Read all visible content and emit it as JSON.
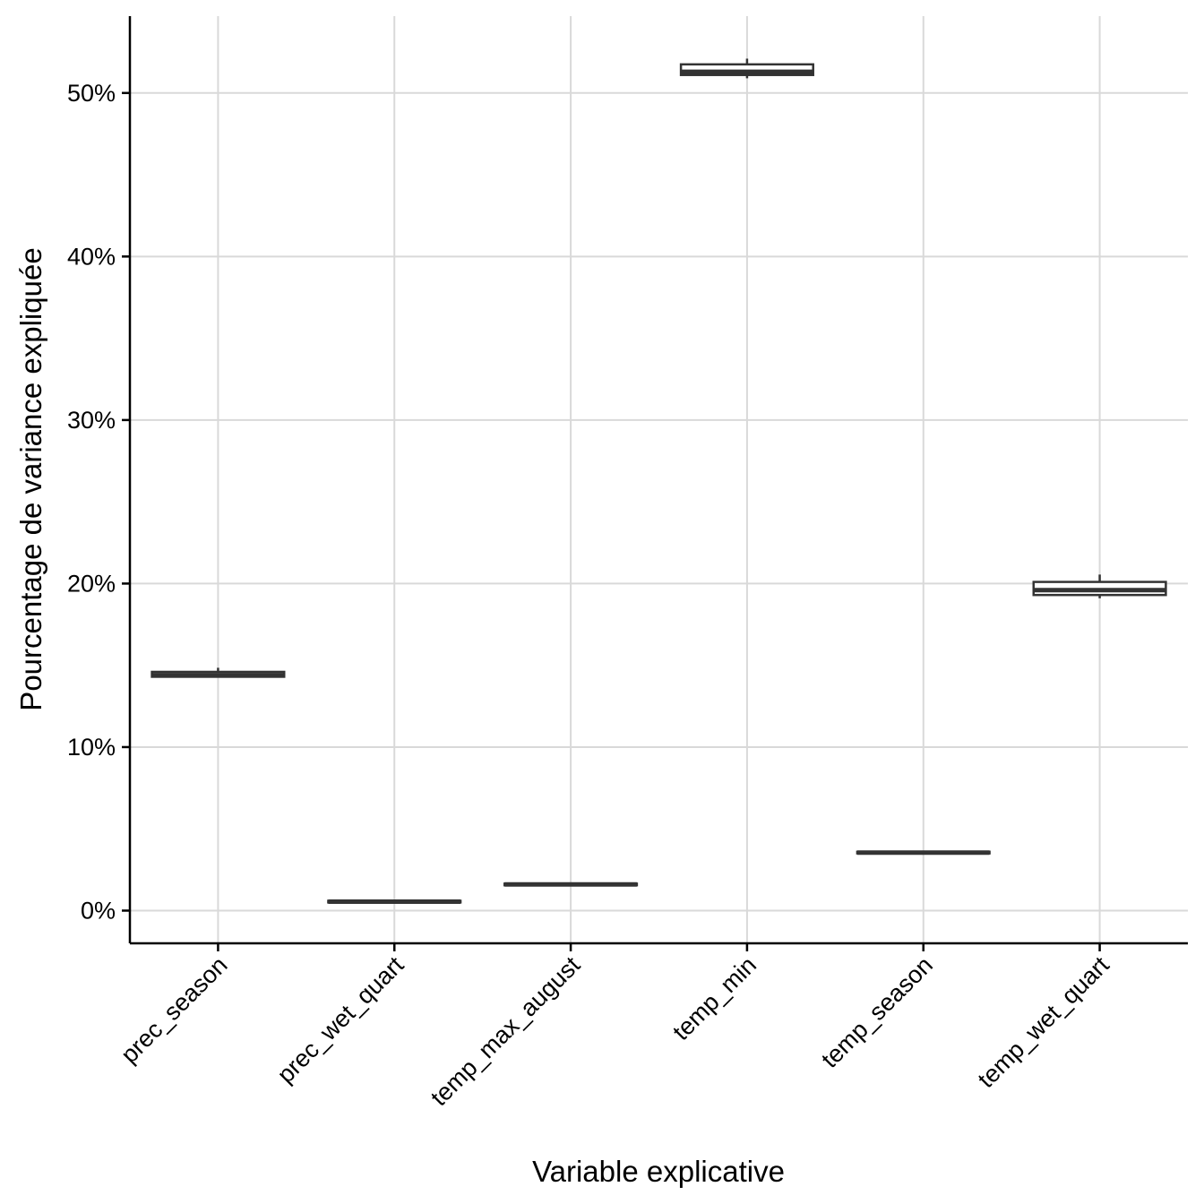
{
  "chart_data": {
    "type": "boxplot",
    "title": "",
    "xlabel": "Variable explicative",
    "ylabel": "Pourcentage de variance expliquée",
    "categories": [
      "prec_season",
      "prec_wet_quart",
      "temp_max_august",
      "temp_min",
      "temp_season",
      "temp_wet_quart"
    ],
    "y_ticks": [
      0,
      10,
      20,
      30,
      40,
      50
    ],
    "y_tick_labels": [
      "0%",
      "10%",
      "20%",
      "30%",
      "40%",
      "50%"
    ],
    "ylim": [
      -2,
      54.7
    ],
    "grid": true,
    "boxes": [
      {
        "category": "prec_season",
        "min": 14.25,
        "q1": 14.3,
        "median": 14.4,
        "q3": 14.6,
        "max": 14.85
      },
      {
        "category": "prec_wet_quart",
        "min": 0.5,
        "q1": 0.5,
        "median": 0.55,
        "q3": 0.6,
        "max": 0.6
      },
      {
        "category": "temp_max_august",
        "min": 1.5,
        "q1": 1.55,
        "median": 1.6,
        "q3": 1.65,
        "max": 1.65
      },
      {
        "category": "temp_min",
        "min": 50.9,
        "q1": 51.1,
        "median": 51.3,
        "q3": 51.75,
        "max": 52.1
      },
      {
        "category": "temp_season",
        "min": 3.5,
        "q1": 3.5,
        "median": 3.55,
        "q3": 3.6,
        "max": 3.6
      },
      {
        "category": "temp_wet_quart",
        "min": 19.1,
        "q1": 19.3,
        "median": 19.6,
        "q3": 20.1,
        "max": 20.55
      }
    ],
    "colors": {
      "grid": "#d9d9d9",
      "axis": "#000000",
      "box_stroke": "#333333",
      "box_fill": "#ffffff"
    }
  }
}
